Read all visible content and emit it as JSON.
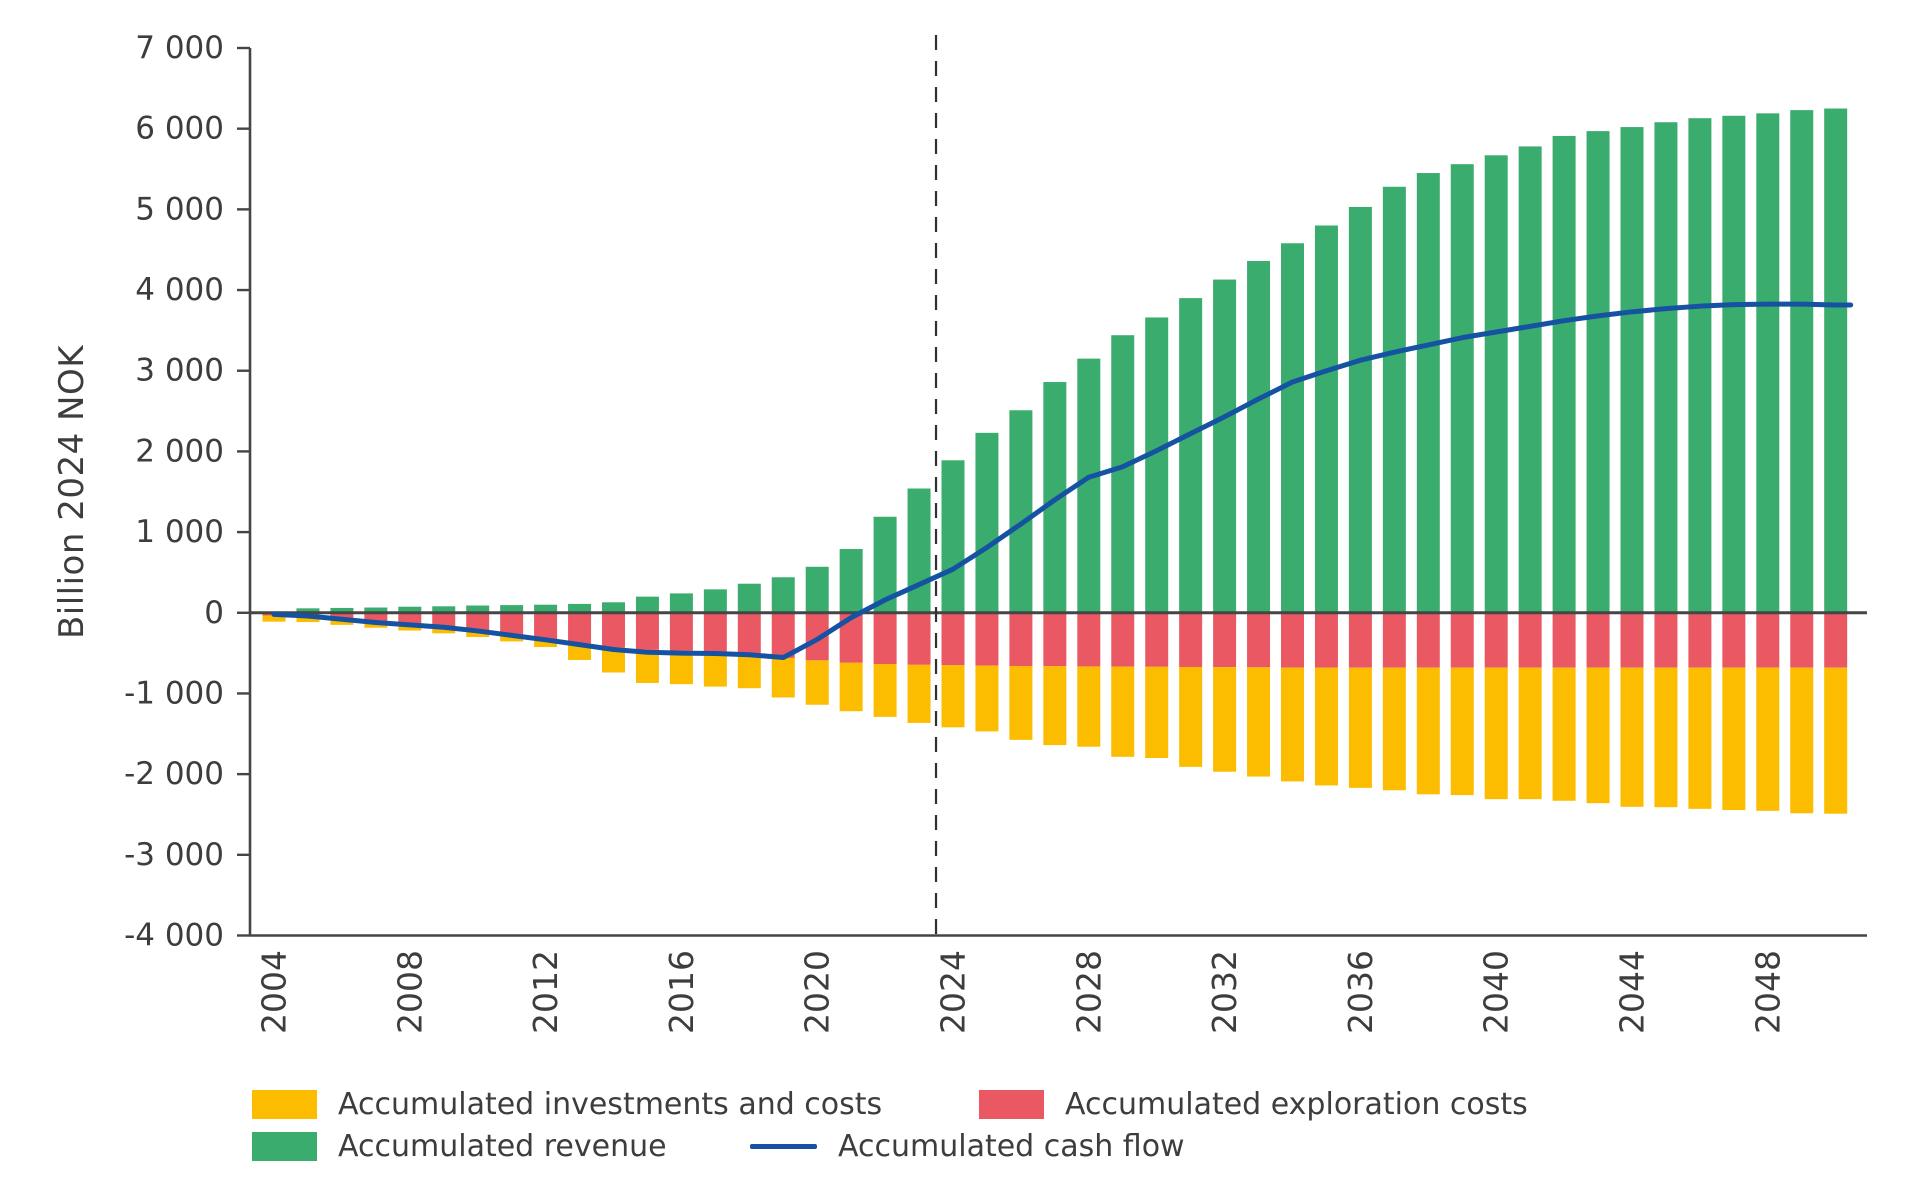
{
  "figure": {
    "ylabel": "Billion 2024 NOK",
    "colors": {
      "revenue": "#3AAC6E",
      "exploration": "#EA5963",
      "investments": "#FCBC00",
      "cashflow": "#1553A2",
      "axis": "#454545",
      "text": "#3D3D3D"
    },
    "y_ticks": [
      {
        "value": 7000,
        "label": "7 000"
      },
      {
        "value": 6000,
        "label": "6 000"
      },
      {
        "value": 5000,
        "label": "5 000"
      },
      {
        "value": 4000,
        "label": "4 000"
      },
      {
        "value": 3000,
        "label": "3 000"
      },
      {
        "value": 2000,
        "label": "2 000"
      },
      {
        "value": 1000,
        "label": "1 000"
      },
      {
        "value": 0,
        "label": "0"
      },
      {
        "value": -1000,
        "label": "-1 000"
      },
      {
        "value": -2000,
        "label": "-2 000"
      },
      {
        "value": -3000,
        "label": "-3 000"
      },
      {
        "value": -4000,
        "label": "-4 000"
      }
    ],
    "x_ticks": [
      2004,
      2008,
      2012,
      2016,
      2020,
      2024,
      2028,
      2032,
      2036,
      2040,
      2044,
      2048
    ]
  },
  "legend": {
    "items": [
      {
        "key": "investments",
        "label": "Accumulated investments and costs",
        "swatch": "rect"
      },
      {
        "key": "exploration",
        "label": "Accumulated exploration costs",
        "swatch": "rect"
      },
      {
        "key": "revenue",
        "label": "Accumulated revenue",
        "swatch": "rect"
      },
      {
        "key": "cashflow",
        "label": "Accumulated cash flow",
        "swatch": "line"
      }
    ]
  },
  "chart_data": {
    "type": "bar",
    "stacked": true,
    "title": "",
    "xlabel": "",
    "ylabel": "Billion 2024 NOK",
    "ylim": [
      -4000,
      7000
    ],
    "grid": false,
    "legend_position": "bottom",
    "annotations": [
      {
        "type": "vline",
        "x": 2023.5,
        "style": "dashed",
        "meaning": "history-forecast divider"
      }
    ],
    "x": [
      2004,
      2005,
      2006,
      2007,
      2008,
      2009,
      2010,
      2011,
      2012,
      2013,
      2014,
      2015,
      2016,
      2017,
      2018,
      2019,
      2020,
      2021,
      2022,
      2023,
      2024,
      2025,
      2026,
      2027,
      2028,
      2029,
      2030,
      2031,
      2032,
      2033,
      2034,
      2035,
      2036,
      2037,
      2038,
      2039,
      2040,
      2041,
      2042,
      2043,
      2044,
      2045,
      2046,
      2047,
      2048,
      2049,
      2050
    ],
    "series": [
      {
        "key": "revenue",
        "name": "Accumulated revenue",
        "type": "bar",
        "values": [
          15,
          55,
          60,
          65,
          75,
          80,
          90,
          95,
          100,
          110,
          130,
          200,
          240,
          290,
          360,
          440,
          570,
          790,
          1190,
          1540,
          1890,
          2230,
          2510,
          2860,
          3150,
          3440,
          3660,
          3900,
          4130,
          4360,
          4580,
          4800,
          5030,
          5280,
          5450,
          5560,
          5670,
          5780,
          5910,
          5970,
          6020,
          6080,
          6130,
          6160,
          6190,
          6230,
          6250
        ]
      },
      {
        "key": "exploration",
        "name": "Accumulated exploration costs",
        "type": "bar",
        "values": [
          -35,
          -60,
          -90,
          -115,
          -140,
          -170,
          -220,
          -275,
          -325,
          -380,
          -430,
          -460,
          -470,
          -490,
          -505,
          -560,
          -590,
          -620,
          -635,
          -645,
          -650,
          -655,
          -660,
          -662,
          -665,
          -667,
          -670,
          -672,
          -674,
          -676,
          -678,
          -679,
          -680,
          -680,
          -680,
          -680,
          -680,
          -680,
          -680,
          -680,
          -680,
          -680,
          -680,
          -680,
          -680,
          -680,
          -680
        ]
      },
      {
        "key": "investments",
        "name": "Accumulated investments and costs",
        "type": "bar",
        "values": [
          -75,
          -55,
          -60,
          -70,
          -80,
          -85,
          -80,
          -80,
          -100,
          -205,
          -310,
          -410,
          -415,
          -425,
          -430,
          -490,
          -550,
          -600,
          -655,
          -720,
          -770,
          -815,
          -915,
          -978,
          -995,
          -1118,
          -1130,
          -1238,
          -1296,
          -1354,
          -1412,
          -1461,
          -1490,
          -1520,
          -1570,
          -1580,
          -1630,
          -1630,
          -1650,
          -1680,
          -1725,
          -1730,
          -1750,
          -1765,
          -1775,
          -1805,
          -1810
        ]
      },
      {
        "key": "cashflow",
        "name": "Accumulated cash flow",
        "type": "line",
        "values": [
          -20,
          -40,
          -80,
          -120,
          -150,
          -180,
          -225,
          -280,
          -335,
          -395,
          -455,
          -490,
          -500,
          -505,
          -520,
          -555,
          -330,
          -60,
          160,
          350,
          540,
          810,
          1100,
          1400,
          1680,
          1810,
          2010,
          2220,
          2430,
          2650,
          2860,
          3000,
          3130,
          3230,
          3320,
          3410,
          3480,
          3550,
          3620,
          3680,
          3730,
          3770,
          3800,
          3820,
          3825,
          3825,
          3815
        ]
      }
    ]
  }
}
